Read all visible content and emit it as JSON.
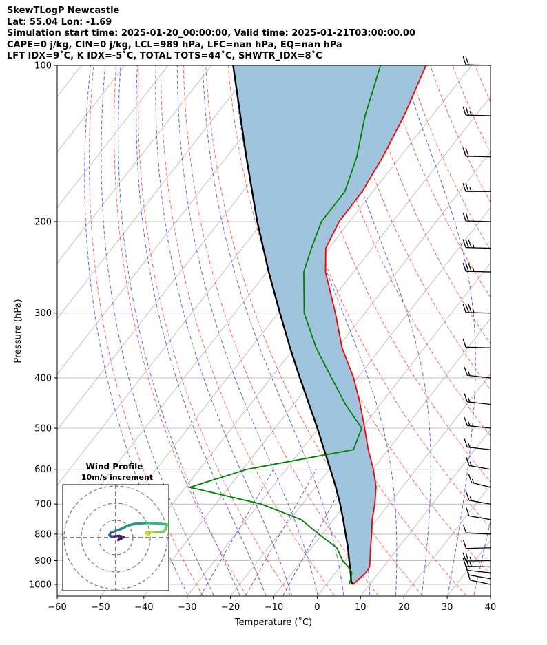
{
  "header": {
    "title": "SkewTLogP Newcastle",
    "location": "Lat: 55.04   Lon: -1.69",
    "times": "Simulation start time: 2025-01-20_00:00:00, Valid time: 2025-01-21T03:00:00.00",
    "indices1": "CAPE=0 j/kg, CIN=0 j/kg, LCL=989 hPa, LFC=nan hPa, EQ=nan hPa",
    "indices2": "LFT IDX=9˚C, K IDX=-5˚C, TOTAL TOTS=44˚C, SHWTR_IDX=8˚C"
  },
  "chart_data": {
    "type": "skewt",
    "xlabel": "Temperature (˚C)",
    "ylabel": "Pressure (hPa)",
    "xlim": [
      -60,
      40
    ],
    "ylim": [
      1050,
      100
    ],
    "x_ticks": [
      -60,
      -50,
      -40,
      -30,
      -20,
      -10,
      0,
      10,
      20,
      30,
      40
    ],
    "x_tick_labels": [
      "−60",
      "−50",
      "−40",
      "−30",
      "−20",
      "−10",
      "0",
      "10",
      "20",
      "30",
      "40"
    ],
    "y_ticks": [
      1000,
      900,
      800,
      700,
      600,
      500,
      400,
      300,
      200,
      100
    ],
    "y_tick_labels": [
      "1000",
      "900",
      "800",
      "700",
      "600",
      "500",
      "400",
      "300",
      "200",
      "100"
    ],
    "colors": {
      "temperature": "#ff0000",
      "dewpoint": "#008000",
      "parcel": "#000000",
      "fill": "#a0c4dd",
      "dry_adiabat": "#ff6060",
      "moist_adiabat": "#5566ee",
      "mixing_ratio": "#8a4fc0",
      "isotherm": "#b0b0b0",
      "grid": "#b0b0b0"
    },
    "temperature": [
      {
        "p": 1000,
        "t": 6.2
      },
      {
        "p": 975,
        "t": 6.6
      },
      {
        "p": 950,
        "t": 7.0
      },
      {
        "p": 925,
        "t": 6.8
      },
      {
        "p": 900,
        "t": 5.8
      },
      {
        "p": 850,
        "t": 3.6
      },
      {
        "p": 800,
        "t": 1.4
      },
      {
        "p": 750,
        "t": -1.1
      },
      {
        "p": 700,
        "t": -3.3
      },
      {
        "p": 650,
        "t": -6.0
      },
      {
        "p": 600,
        "t": -9.9
      },
      {
        "p": 550,
        "t": -14.6
      },
      {
        "p": 500,
        "t": -19.3
      },
      {
        "p": 450,
        "t": -24.6
      },
      {
        "p": 400,
        "t": -30.9
      },
      {
        "p": 350,
        "t": -39.0
      },
      {
        "p": 300,
        "t": -46.8
      },
      {
        "p": 250,
        "t": -56.5
      },
      {
        "p": 225,
        "t": -60.7
      },
      {
        "p": 200,
        "t": -62.4
      },
      {
        "p": 175,
        "t": -62.5
      },
      {
        "p": 150,
        "t": -64.0
      },
      {
        "p": 125,
        "t": -66.5
      },
      {
        "p": 100,
        "t": -70.5
      }
    ],
    "dewpoint": [
      {
        "p": 1000,
        "t": 5.3
      },
      {
        "p": 975,
        "t": 4.6
      },
      {
        "p": 950,
        "t": 3.8
      },
      {
        "p": 925,
        "t": 1.9
      },
      {
        "p": 900,
        "t": -0.5
      },
      {
        "p": 850,
        "t": -4.2
      },
      {
        "p": 800,
        "t": -10.8
      },
      {
        "p": 750,
        "t": -17.5
      },
      {
        "p": 700,
        "t": -29.5
      },
      {
        "p": 650,
        "t": -49.0
      },
      {
        "p": 600,
        "t": -39.0
      },
      {
        "p": 550,
        "t": -18.0
      },
      {
        "p": 500,
        "t": -20.0
      },
      {
        "p": 450,
        "t": -28.0
      },
      {
        "p": 400,
        "t": -36.0
      },
      {
        "p": 350,
        "t": -45.0
      },
      {
        "p": 300,
        "t": -54.0
      },
      {
        "p": 250,
        "t": -61.5
      },
      {
        "p": 225,
        "t": -64.0
      },
      {
        "p": 200,
        "t": -66.5
      },
      {
        "p": 175,
        "t": -66.5
      },
      {
        "p": 150,
        "t": -70.0
      },
      {
        "p": 125,
        "t": -75.5
      },
      {
        "p": 100,
        "t": -81.0
      }
    ],
    "parcel": [
      {
        "p": 1000,
        "t": 6.2
      },
      {
        "p": 989,
        "t": 5.3
      },
      {
        "p": 950,
        "t": 3.5
      },
      {
        "p": 900,
        "t": 1.0
      },
      {
        "p": 850,
        "t": -1.6
      },
      {
        "p": 800,
        "t": -4.6
      },
      {
        "p": 750,
        "t": -7.8
      },
      {
        "p": 700,
        "t": -11.3
      },
      {
        "p": 650,
        "t": -15.3
      },
      {
        "p": 600,
        "t": -19.8
      },
      {
        "p": 550,
        "t": -24.8
      },
      {
        "p": 500,
        "t": -30.2
      },
      {
        "p": 450,
        "t": -36.4
      },
      {
        "p": 400,
        "t": -43.3
      },
      {
        "p": 350,
        "t": -51.0
      },
      {
        "p": 300,
        "t": -59.6
      },
      {
        "p": 250,
        "t": -69.6
      },
      {
        "p": 200,
        "t": -81.3
      },
      {
        "p": 150,
        "t": -95.5
      },
      {
        "p": 100,
        "t": -115.0
      }
    ],
    "wind_barbs": [
      {
        "p": 1000,
        "speed_kt": 10,
        "dir": 235
      },
      {
        "p": 975,
        "speed_kt": 10,
        "dir": 240
      },
      {
        "p": 950,
        "speed_kt": 10,
        "dir": 250
      },
      {
        "p": 925,
        "speed_kt": 15,
        "dir": 265
      },
      {
        "p": 900,
        "speed_kt": 15,
        "dir": 275
      },
      {
        "p": 850,
        "speed_kt": 10,
        "dir": 280
      },
      {
        "p": 800,
        "speed_kt": 10,
        "dir": 260
      },
      {
        "p": 750,
        "speed_kt": 10,
        "dir": 240
      },
      {
        "p": 700,
        "speed_kt": 5,
        "dir": 240
      },
      {
        "p": 650,
        "speed_kt": 5,
        "dir": 230
      },
      {
        "p": 600,
        "speed_kt": 5,
        "dir": 240
      },
      {
        "p": 550,
        "speed_kt": 5,
        "dir": 250
      },
      {
        "p": 500,
        "speed_kt": 5,
        "dir": 250
      },
      {
        "p": 450,
        "speed_kt": 5,
        "dir": 250
      },
      {
        "p": 400,
        "speed_kt": 5,
        "dir": 250
      },
      {
        "p": 350,
        "speed_kt": 10,
        "dir": 265
      },
      {
        "p": 300,
        "speed_kt": 25,
        "dir": 265
      },
      {
        "p": 250,
        "speed_kt": 25,
        "dir": 265
      },
      {
        "p": 225,
        "speed_kt": 25,
        "dir": 265
      },
      {
        "p": 200,
        "speed_kt": 20,
        "dir": 265
      },
      {
        "p": 175,
        "speed_kt": 15,
        "dir": 270
      },
      {
        "p": 150,
        "speed_kt": 20,
        "dir": 265
      },
      {
        "p": 125,
        "speed_kt": 15,
        "dir": 265
      },
      {
        "p": 100,
        "speed_kt": 20,
        "dir": 265
      }
    ],
    "hodograph": {
      "title": "Wind Profile",
      "subtitle": "10m/s increment",
      "rings_ms": [
        10,
        20,
        30
      ],
      "points": [
        [
          1.5,
          -1.4
        ],
        [
          3.0,
          -0.6
        ],
        [
          4.5,
          0.4
        ],
        [
          2.0,
          1.0
        ],
        [
          -1.4,
          0.7
        ],
        [
          -3.2,
          0.9
        ],
        [
          -3.6,
          1.6
        ],
        [
          -2.9,
          2.8
        ],
        [
          -0.4,
          3.7
        ],
        [
          3.0,
          5.0
        ],
        [
          7.0,
          7.0
        ],
        [
          11.0,
          8.0
        ],
        [
          18.0,
          8.5
        ],
        [
          25.0,
          8.2
        ],
        [
          30.0,
          7.5
        ],
        [
          28.0,
          3.5
        ],
        [
          22.0,
          3.1
        ],
        [
          18.0,
          3.3
        ],
        [
          17.5,
          2.6
        ],
        [
          19.0,
          1.6
        ]
      ]
    }
  }
}
